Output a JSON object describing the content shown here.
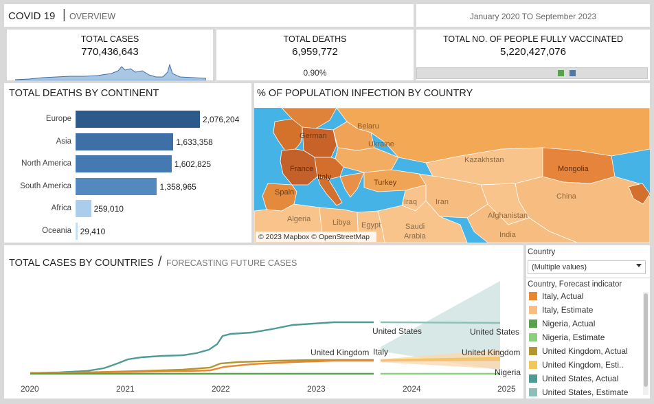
{
  "header": {
    "title": "COVID 19",
    "separator": "|",
    "subtitle": "OVERVIEW",
    "date_range": "January 2020 TO  September 2023"
  },
  "kpis": {
    "total_cases": {
      "label": "TOTAL CASES",
      "value": "770,436,643"
    },
    "total_deaths": {
      "label": "TOTAL DEATHS",
      "value": "6,959,772",
      "rate": "0.90%"
    },
    "vaccinated": {
      "label": "TOTAL NO. OF PEOPLE FULLY VACCINATED",
      "value": "5,220,427,076"
    }
  },
  "continents": {
    "title": "TOTAL DEATHS BY CONTINENT",
    "chart_data": {
      "type": "bar",
      "categories": [
        "Europe",
        "Asia",
        "North America",
        "South America",
        "Africa",
        "Oceania"
      ],
      "values": [
        2076204,
        1633358,
        1602825,
        1358965,
        259010,
        29410
      ],
      "labels": [
        "2,076,204",
        "1,633,358",
        "1,602,825",
        "1,358,965",
        "259,010",
        "29,410"
      ],
      "colors": [
        "#2c5a8a",
        "#3e6fa6",
        "#4479b1",
        "#5389be",
        "#a9cdea",
        "#c6dff2"
      ]
    }
  },
  "map": {
    "title": "% OF POPULATION INFECTION BY COUNTRY",
    "attribution": "© 2023 Mapbox © OpenStreetMap",
    "labels": {
      "germany": "German",
      "belarus": "Belaru",
      "ukraine": "Ukraine",
      "france": "France",
      "italy": "Italy",
      "spain": "Spain",
      "turkey": "Turkey",
      "kazakhstan": "Kazakhstan",
      "mongolia": "Mongolia",
      "china": "China",
      "iran": "Iran",
      "iraq": "Iraq",
      "algeria": "Algeria",
      "libya": "Libya",
      "egypt": "Egypt",
      "saudi": "Saudi",
      "arabia": "Arabia",
      "afghanistan": "Afghanistan",
      "india": "India"
    }
  },
  "cases_chart": {
    "title": "TOTAL CASES BY COUNTRIES",
    "separator": "/",
    "subtitle": "FORECASTING FUTURE CASES",
    "chart_data": {
      "type": "line",
      "x_ticks": [
        "2020",
        "2021",
        "2022",
        "2023",
        "2024",
        "2025"
      ],
      "series_labels": {
        "us_actual": "United States",
        "us_forecast": "United States",
        "uk_actual": "United Kingdom",
        "italy_actual": "Italy",
        "uk_forecast": "United Kingdom",
        "nigeria_forecast": "Nigeria"
      }
    }
  },
  "filter": {
    "country_label": "Country",
    "country_value": "(Multiple values)",
    "legend_title": "Country, Forecast indicator",
    "legend": [
      {
        "label": "Italy, Actual",
        "color": "#e8872e"
      },
      {
        "label": "Italy, Estimate",
        "color": "#f7be82"
      },
      {
        "label": "Nigeria, Actual",
        "color": "#59a14f"
      },
      {
        "label": "Nigeria, Estimate",
        "color": "#8ccf7e"
      },
      {
        "label": "United Kingdom, Actual",
        "color": "#b3962f"
      },
      {
        "label": "United Kingdom, Esti..",
        "color": "#f0c85a"
      },
      {
        "label": "United States, Actual",
        "color": "#4e9a94"
      },
      {
        "label": "United States, Estimate",
        "color": "#8dbfb8"
      }
    ]
  }
}
